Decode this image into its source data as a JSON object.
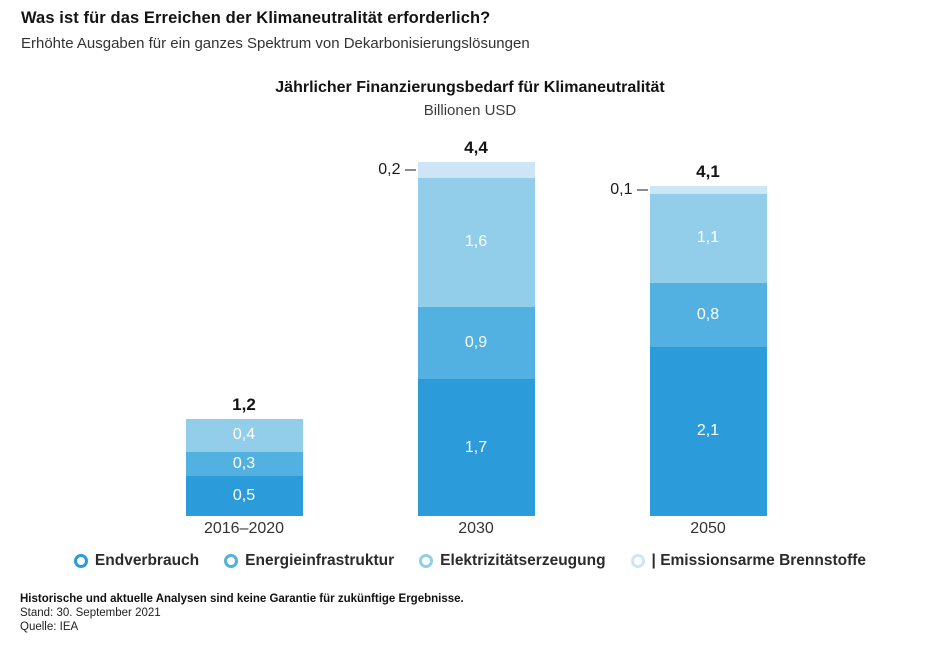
{
  "page": {
    "title": "Was ist für das Erreichen der Klimaneutralität erforderlich?",
    "subtitle": "Erhöhte Ausgaben für ein ganzes Spektrum von Dekarbonisierungslösungen"
  },
  "chart": {
    "title": "Jährlicher Finanzierungsbedarf für Klimaneutralität",
    "unit_label": "Billionen USD"
  },
  "chart_data": {
    "type": "bar",
    "stacked": true,
    "stack_order": "bottom-to-top",
    "title": "Jährlicher Finanzierungsbedarf für Klimaneutralität",
    "xlabel": "",
    "ylabel": "Billionen USD",
    "ylim": [
      0,
      4.6
    ],
    "grid": false,
    "legend_position": "bottom",
    "categories": [
      "2016–2020",
      "2030",
      "2050"
    ],
    "totals": [
      "1,2",
      "4,4",
      "4,1"
    ],
    "series": [
      {
        "name": "Endverbrauch",
        "color": "#2b9cd9",
        "values": [
          0.5,
          1.7,
          2.1
        ],
        "value_labels": [
          "0,5",
          "1,7",
          "2,1"
        ]
      },
      {
        "name": "Energieinfrastruktur",
        "color": "#52b1e0",
        "values": [
          0.3,
          0.9,
          0.8
        ],
        "value_labels": [
          "0,3",
          "0,9",
          "0,8"
        ]
      },
      {
        "name": "Elektrizitätserzeugung",
        "color": "#92cdea",
        "values": [
          0.4,
          1.6,
          1.1
        ],
        "value_labels": [
          "0,4",
          "1,6",
          "1,1"
        ]
      },
      {
        "name": "Emissionsarme Brennstoffe",
        "color": "#cde6f5",
        "values": [
          0,
          0.2,
          0.1
        ],
        "value_labels": [
          "",
          "0,2",
          "0,1"
        ]
      }
    ]
  },
  "legend": {
    "items": [
      {
        "label": "Endverbrauch",
        "color": "#2b9cd9"
      },
      {
        "label": "Energieinfrastruktur",
        "color": "#52b1e0"
      },
      {
        "label": "Elektrizitätserzeugung",
        "color": "#92cdea"
      },
      {
        "label": "| Emissionsarme Brennstoffe",
        "color": "#cde6f5"
      }
    ]
  },
  "footer": {
    "disclaimer": "Historische und aktuelle Analysen sind keine Garantie für zukünftige Ergebnisse.",
    "date": "Stand: 30. September 2021",
    "source": "Quelle: IEA"
  }
}
